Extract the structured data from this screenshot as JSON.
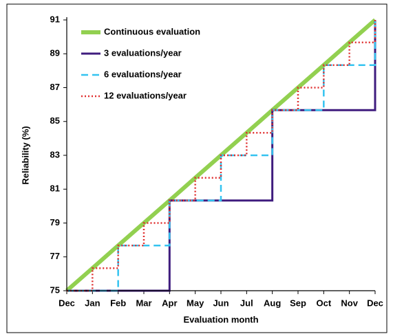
{
  "chart_data": {
    "type": "line",
    "step": "post",
    "xlabel": "Evaluation month",
    "ylabel": "Reliability (%)",
    "categories": [
      "Dec",
      "Jan",
      "Feb",
      "Mar",
      "Apr",
      "May",
      "Jun",
      "Jul",
      "Aug",
      "Sep",
      "Oct",
      "Nov",
      "Dec"
    ],
    "series": [
      {
        "name": "Continuous evaluation",
        "color": "#92d050",
        "style": "solid",
        "step": false,
        "values": [
          75,
          76.33,
          77.67,
          79,
          80.33,
          81.67,
          83,
          84.33,
          85.67,
          87,
          88.33,
          89.67,
          91
        ]
      },
      {
        "name": "3 evaluations/year",
        "color": "#3f1c7e",
        "style": "solid",
        "step": true,
        "values": [
          75,
          75,
          75,
          75,
          80.33,
          80.33,
          80.33,
          80.33,
          85.67,
          85.67,
          85.67,
          85.67,
          91
        ]
      },
      {
        "name": "6 evaluations/year",
        "color": "#33c3f0",
        "style": "dashed",
        "step": true,
        "values": [
          75,
          75,
          77.67,
          77.67,
          80.33,
          80.33,
          83,
          83,
          85.67,
          85.67,
          88.33,
          88.33,
          91
        ]
      },
      {
        "name": "12 evaluations/year",
        "color": "#e03030",
        "style": "dotted",
        "step": true,
        "values": [
          75,
          76.33,
          77.67,
          79,
          80.33,
          81.67,
          83,
          84.33,
          85.67,
          87,
          88.33,
          89.67,
          91
        ]
      }
    ],
    "ylim": [
      75,
      91
    ],
    "yticks": [
      75,
      77,
      79,
      81,
      83,
      85,
      87,
      89,
      91
    ],
    "legend": "upper left"
  }
}
